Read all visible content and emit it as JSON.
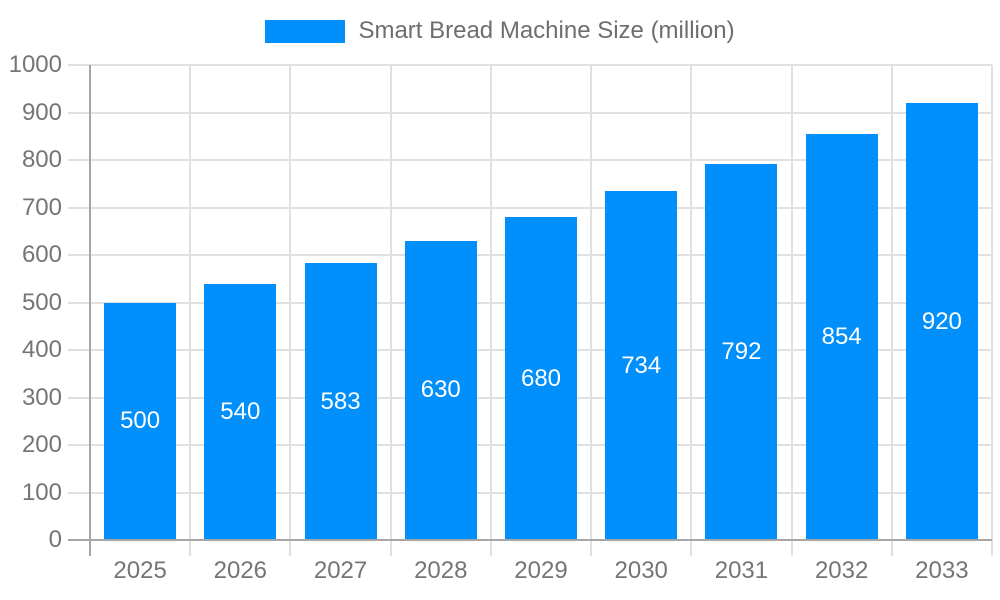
{
  "chart_data": {
    "type": "bar",
    "title": "Smart Bread Machine Size (million)",
    "categories": [
      "2025",
      "2026",
      "2027",
      "2028",
      "2029",
      "2030",
      "2031",
      "2032",
      "2033"
    ],
    "values": [
      500,
      540,
      583,
      630,
      680,
      734,
      792,
      854,
      920
    ],
    "xlabel": "",
    "ylabel": "",
    "ylim": [
      0,
      1000
    ],
    "ytick_step": 100,
    "grid": true,
    "legend_position": "top",
    "legend_marker": "rectangle",
    "value_labels": "inside-center"
  },
  "colors": {
    "bar": "#008FFB",
    "value_label": "#FFFFFF",
    "axis_line": "#A6A6A6",
    "gridline": "#E0E0E0",
    "axis_text": "#757575",
    "legend_text": "#6E6E6E",
    "background": "#FFFFFF"
  }
}
